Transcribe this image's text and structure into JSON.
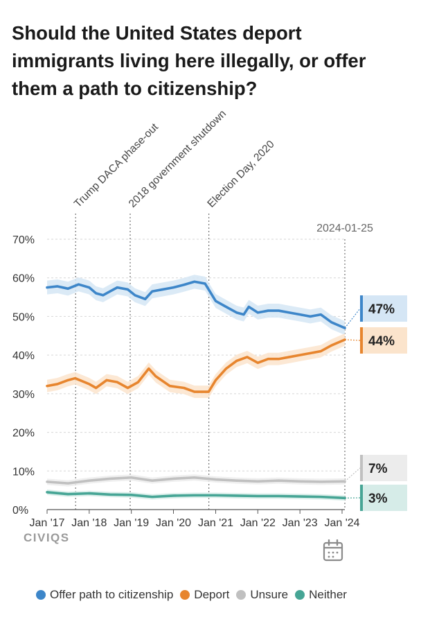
{
  "title": "Should the United States deport immigrants living here illegally, or offer them a path to citizenship?",
  "brand": "CIVIQS",
  "chart_data": {
    "type": "line",
    "ylim": [
      0,
      70
    ],
    "y_ticks": [
      0,
      10,
      20,
      30,
      40,
      50,
      60,
      70
    ],
    "y_tick_labels": [
      "0%",
      "10%",
      "20%",
      "30%",
      "40%",
      "50%",
      "60%",
      "70%"
    ],
    "x_range": [
      "2017-01-01",
      "2024-01-25"
    ],
    "x_ticks": [
      "2017-01-01",
      "2018-01-01",
      "2019-01-01",
      "2020-01-01",
      "2021-01-01",
      "2022-01-01",
      "2023-01-01",
      "2024-01-01"
    ],
    "x_tick_labels": [
      "Jan '17",
      "Jan '18",
      "Jan '19",
      "Jan '20",
      "Jan '21",
      "Jan '22",
      "Jan '23",
      "Jan '24"
    ],
    "grid": true,
    "legend_position": "bottom",
    "end_date_label": "2024-01-25",
    "annotations": [
      {
        "date": "2017-09-05",
        "label": "Trump DACA phase-out"
      },
      {
        "date": "2018-12-22",
        "label": "2018 government shutdown"
      },
      {
        "date": "2020-11-03",
        "label": "Election Day, 2020"
      }
    ],
    "series": [
      {
        "name": "Offer path to citizenship",
        "color": "#3d86c9",
        "band_color": "#d5e6f5",
        "end_label": "47%",
        "points": [
          [
            "2017-01-01",
            57.5
          ],
          [
            "2017-04-01",
            57.8
          ],
          [
            "2017-07-01",
            57.2
          ],
          [
            "2017-10-01",
            58.3
          ],
          [
            "2018-01-01",
            57.5
          ],
          [
            "2018-03-01",
            56.0
          ],
          [
            "2018-05-01",
            55.5
          ],
          [
            "2018-07-01",
            56.5
          ],
          [
            "2018-09-01",
            57.5
          ],
          [
            "2018-12-01",
            57.0
          ],
          [
            "2019-02-01",
            55.5
          ],
          [
            "2019-05-01",
            54.5
          ],
          [
            "2019-07-01",
            56.5
          ],
          [
            "2019-10-01",
            57.0
          ],
          [
            "2020-01-01",
            57.5
          ],
          [
            "2020-04-01",
            58.2
          ],
          [
            "2020-07-01",
            59.0
          ],
          [
            "2020-10-01",
            58.5
          ],
          [
            "2021-01-01",
            54.0
          ],
          [
            "2021-04-01",
            52.5
          ],
          [
            "2021-07-01",
            51.0
          ],
          [
            "2021-09-01",
            50.5
          ],
          [
            "2021-10-15",
            52.5
          ],
          [
            "2022-01-01",
            51.0
          ],
          [
            "2022-04-01",
            51.5
          ],
          [
            "2022-07-01",
            51.5
          ],
          [
            "2022-10-01",
            51.0
          ],
          [
            "2023-01-01",
            50.5
          ],
          [
            "2023-04-01",
            50.0
          ],
          [
            "2023-07-01",
            50.5
          ],
          [
            "2023-10-01",
            48.5
          ],
          [
            "2024-01-25",
            47.0
          ]
        ]
      },
      {
        "name": "Deport",
        "color": "#e7852e",
        "band_color": "#fbe4cc",
        "end_label": "44%",
        "points": [
          [
            "2017-01-01",
            32.0
          ],
          [
            "2017-04-01",
            32.5
          ],
          [
            "2017-07-01",
            33.5
          ],
          [
            "2017-09-01",
            34.0
          ],
          [
            "2018-01-01",
            32.5
          ],
          [
            "2018-03-01",
            31.5
          ],
          [
            "2018-06-01",
            33.5
          ],
          [
            "2018-09-01",
            33.0
          ],
          [
            "2018-12-01",
            31.5
          ],
          [
            "2019-03-01",
            33.0
          ],
          [
            "2019-06-01",
            36.5
          ],
          [
            "2019-08-01",
            34.5
          ],
          [
            "2019-12-01",
            32.0
          ],
          [
            "2020-04-01",
            31.5
          ],
          [
            "2020-07-01",
            30.5
          ],
          [
            "2020-11-01",
            30.5
          ],
          [
            "2021-01-01",
            33.5
          ],
          [
            "2021-04-01",
            36.5
          ],
          [
            "2021-07-01",
            38.5
          ],
          [
            "2021-10-01",
            39.5
          ],
          [
            "2022-01-01",
            38.0
          ],
          [
            "2022-04-01",
            39.0
          ],
          [
            "2022-07-01",
            39.0
          ],
          [
            "2022-10-01",
            39.5
          ],
          [
            "2023-01-01",
            40.0
          ],
          [
            "2023-04-01",
            40.5
          ],
          [
            "2023-07-01",
            41.0
          ],
          [
            "2023-10-01",
            42.5
          ],
          [
            "2024-01-25",
            44.0
          ]
        ]
      },
      {
        "name": "Unsure",
        "color": "#c0c0c0",
        "band_color": "#ececec",
        "end_label": "7%",
        "points": [
          [
            "2017-01-01",
            7.2
          ],
          [
            "2017-07-01",
            6.8
          ],
          [
            "2018-01-01",
            7.5
          ],
          [
            "2018-07-01",
            8.0
          ],
          [
            "2019-01-01",
            8.3
          ],
          [
            "2019-07-01",
            7.5
          ],
          [
            "2020-01-01",
            8.0
          ],
          [
            "2020-07-01",
            8.3
          ],
          [
            "2021-01-01",
            7.8
          ],
          [
            "2021-07-01",
            7.5
          ],
          [
            "2022-01-01",
            7.3
          ],
          [
            "2022-07-01",
            7.5
          ],
          [
            "2023-01-01",
            7.3
          ],
          [
            "2023-07-01",
            7.2
          ],
          [
            "2024-01-25",
            7.3
          ]
        ]
      },
      {
        "name": "Neither",
        "color": "#46a595",
        "band_color": "#d6ece8",
        "end_label": "3%",
        "points": [
          [
            "2017-01-01",
            4.5
          ],
          [
            "2017-07-01",
            4.0
          ],
          [
            "2018-01-01",
            4.2
          ],
          [
            "2018-07-01",
            3.9
          ],
          [
            "2019-01-01",
            3.8
          ],
          [
            "2019-07-01",
            3.3
          ],
          [
            "2020-01-01",
            3.6
          ],
          [
            "2020-07-01",
            3.7
          ],
          [
            "2021-01-01",
            3.7
          ],
          [
            "2021-07-01",
            3.6
          ],
          [
            "2022-01-01",
            3.5
          ],
          [
            "2022-07-01",
            3.5
          ],
          [
            "2023-01-01",
            3.4
          ],
          [
            "2023-07-01",
            3.3
          ],
          [
            "2024-01-25",
            3.0
          ]
        ]
      }
    ]
  }
}
